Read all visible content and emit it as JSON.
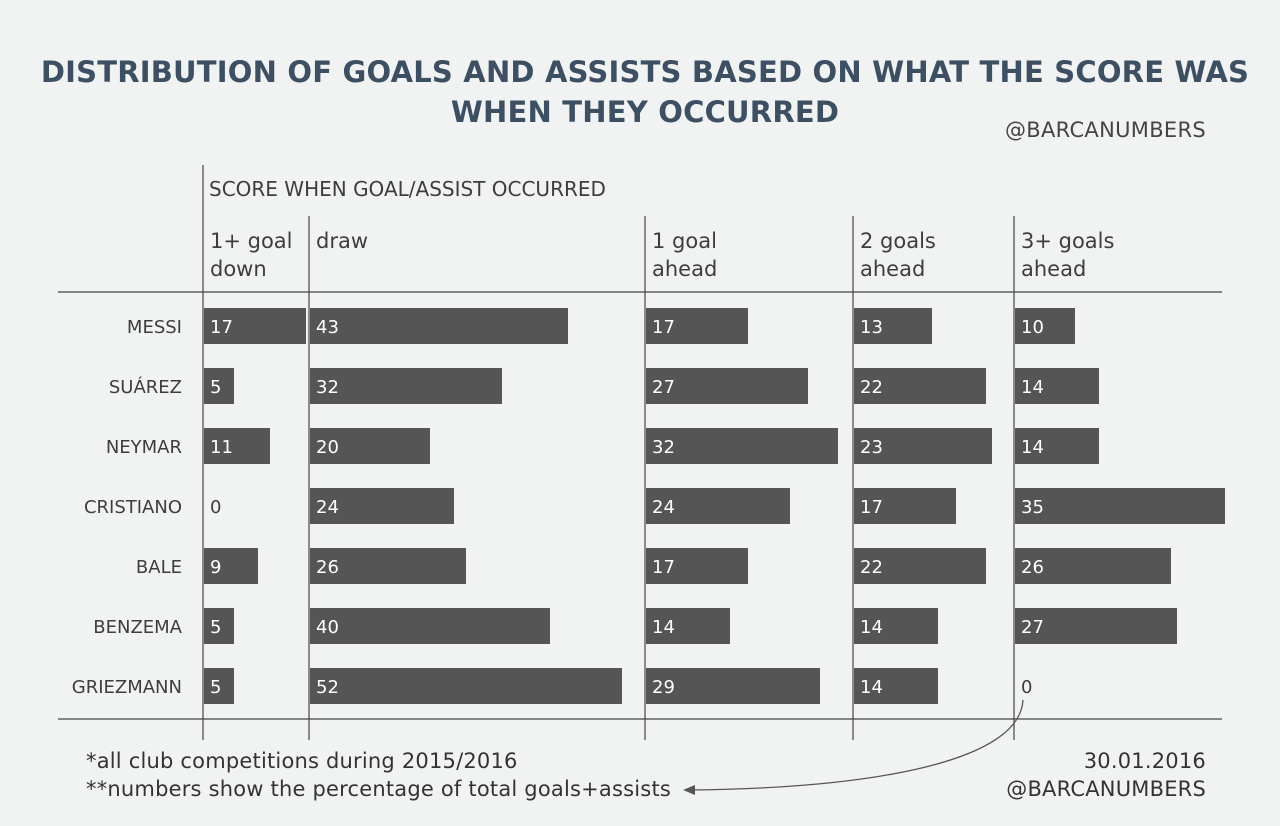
{
  "chart_data": {
    "type": "bar",
    "title": "DISTRIBUTION OF GOALS AND ASSISTS BASED ON WHAT THE SCORE WAS WHEN THEY OCCURRED",
    "handle_top": "@BARCANUMBERS",
    "group_header": "SCORE WHEN GOAL/ASSIST OCCURRED",
    "columns": [
      {
        "label_line1": "1+ goal",
        "label_line2": "down"
      },
      {
        "label_line1": "draw",
        "label_line2": ""
      },
      {
        "label_line1": "1 goal",
        "label_line2": "ahead"
      },
      {
        "label_line1": "2 goals",
        "label_line2": "ahead"
      },
      {
        "label_line1": "3+ goals",
        "label_line2": "ahead"
      }
    ],
    "categories": [
      "MESSI",
      "SUÁREZ",
      "NEYMAR",
      "CRISTIANO",
      "BALE",
      "BENZEMA",
      "GRIEZMANN"
    ],
    "series": [
      {
        "name": "1+ goal down",
        "values": [
          17,
          5,
          11,
          0,
          9,
          5,
          5
        ]
      },
      {
        "name": "draw",
        "values": [
          43,
          32,
          20,
          24,
          26,
          40,
          52
        ]
      },
      {
        "name": "1 goal ahead",
        "values": [
          17,
          27,
          32,
          24,
          17,
          14,
          29
        ]
      },
      {
        "name": "2 goals ahead",
        "values": [
          13,
          22,
          23,
          17,
          22,
          14,
          14
        ]
      },
      {
        "name": "3+ goals ahead",
        "values": [
          10,
          14,
          14,
          35,
          26,
          27,
          0
        ]
      }
    ],
    "unit": "% of total goals+assists",
    "bar_color": "#555555"
  },
  "footer": {
    "note1": "*all club competitions during 2015/2016",
    "note2": "**numbers show the percentage of total goals+assists",
    "date": "30.01.2016",
    "handle": "@BARCANUMBERS"
  }
}
